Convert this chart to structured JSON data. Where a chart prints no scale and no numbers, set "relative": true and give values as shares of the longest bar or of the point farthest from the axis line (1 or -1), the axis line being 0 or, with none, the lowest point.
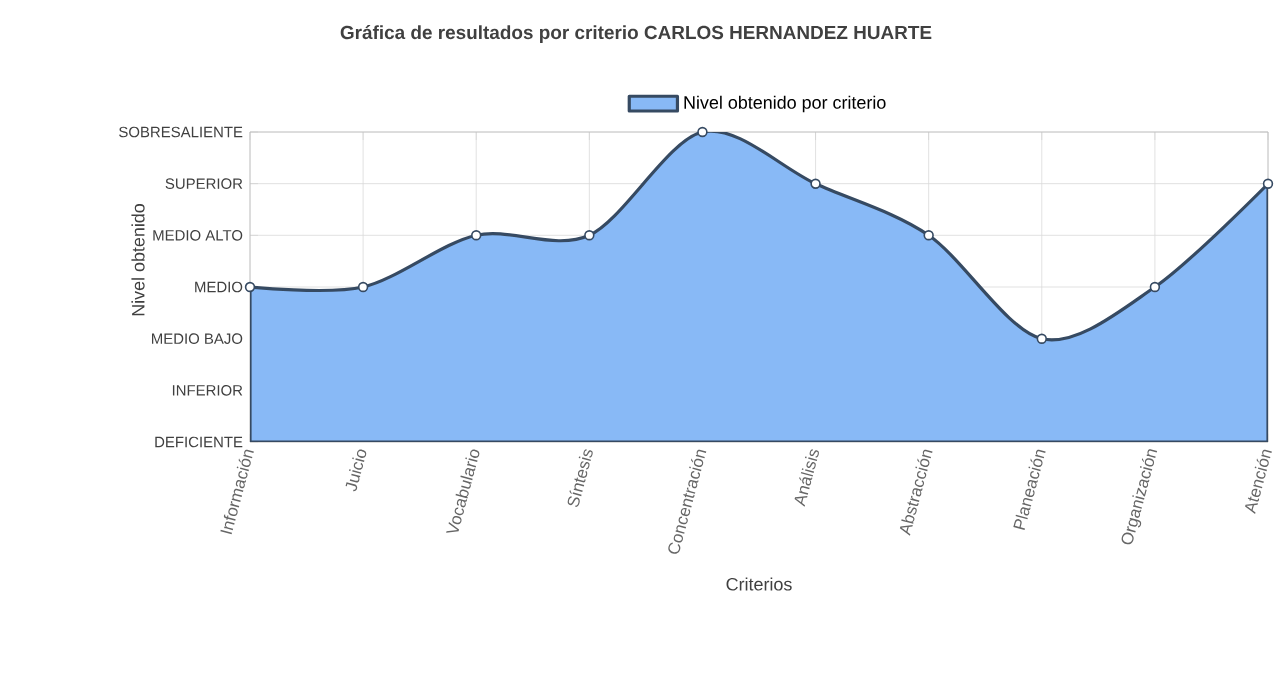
{
  "chart_data": {
    "type": "area",
    "title": "Gráfica de resultados por criterio CARLOS HERNANDEZ HUARTE",
    "xlabel": "Criterios",
    "ylabel": "Nivel obtenido",
    "categories": [
      "Información",
      "Juicio",
      "Vocabulario",
      "Síntesis",
      "Concentración",
      "Análisis",
      "Abstracción",
      "Planeación",
      "Organización",
      "Atención"
    ],
    "series": [
      {
        "name": "Nivel obtenido por criterio",
        "color": "#88b9f6",
        "values": [
          0.5,
          0.5,
          0.667,
          0.667,
          1,
          0.833,
          0.667,
          0.333,
          0.5,
          0.833
        ]
      }
    ],
    "relative": true,
    "annotations": [
      "DEFICIENTE",
      "INFERIOR",
      "MEDIO BAJO",
      "MEDIO",
      "MEDIO ALTO",
      "SUPERIOR",
      "SOBRESALIENTE"
    ],
    "grid": true,
    "legend": "top",
    "marker": "circle",
    "line_style": "solid"
  }
}
